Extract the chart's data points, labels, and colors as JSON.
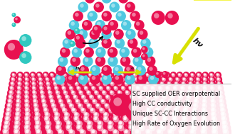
{
  "text_box_lines": [
    "SC supplied OER overpotential",
    "High CC conductivity",
    "Unique SC-CC Interactions",
    "High Rate of Oxygen Evolution"
  ],
  "text_fontsize": 5.8,
  "bg_color": "white",
  "sc_color_main": "#e81050",
  "sc_color_light": "#f8d0d8",
  "cc_cyan": "#50c8e0",
  "cc_red": "#e81050",
  "water_O": "#e81050",
  "water_H": "#30c8c0",
  "o2_color": "#e81050",
  "sun_color": "#f0f000",
  "arrow_yellow": "#d8e000",
  "arrow_black": "black",
  "hv_color": "#222222"
}
